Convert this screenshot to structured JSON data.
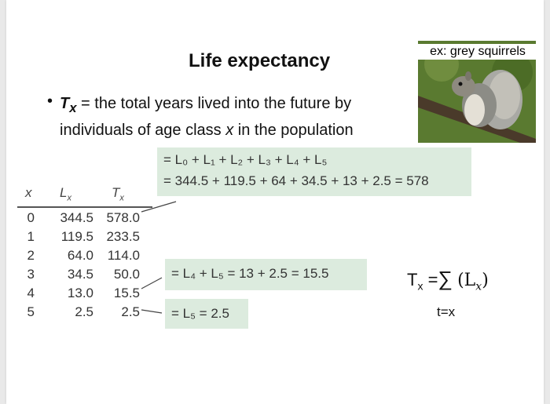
{
  "title": "Life expectancy",
  "photo": {
    "label": "ex: grey squirrels"
  },
  "bullet": {
    "term": "T",
    "term_sub": "x",
    "text_before": " = the total years lived into the future by individuals of age class ",
    "text_var": "x",
    "text_after": " in the population"
  },
  "equations": {
    "eq1_line1": "= L₀ + L₁ + L₂ + L₃ + L₄ + L₅",
    "eq1_line2": "= 344.5 + 119.5 + 64 + 34.5 + 13 + 2.5 = 578",
    "eq2": "= L₄ + L₅ = 13 + 2.5 = 15.5",
    "eq3": "= L₅ = 2.5"
  },
  "table": {
    "headers": {
      "x": "x",
      "lx_base": "L",
      "lx_sub": "x",
      "tx_base": "T",
      "tx_sub": "x"
    },
    "rows": [
      {
        "x": "0",
        "lx": "344.5",
        "tx": "578.0"
      },
      {
        "x": "1",
        "lx": "119.5",
        "tx": "233.5"
      },
      {
        "x": "2",
        "lx": "64.0",
        "tx": "114.0"
      },
      {
        "x": "3",
        "lx": "34.5",
        "tx": "50.0"
      },
      {
        "x": "4",
        "lx": "13.0",
        "tx": "15.5"
      },
      {
        "x": "5",
        "lx": "2.5",
        "tx": "2.5"
      }
    ]
  },
  "formula": {
    "lhs": "T",
    "lhs_sub": "x",
    "eq": " =",
    "sigma": "∑",
    "term": "(L",
    "term_sub": "x",
    "term_close": ")",
    "lower": "t=x"
  },
  "colors": {
    "eq_box": "#dcebde",
    "text": "#333333"
  }
}
